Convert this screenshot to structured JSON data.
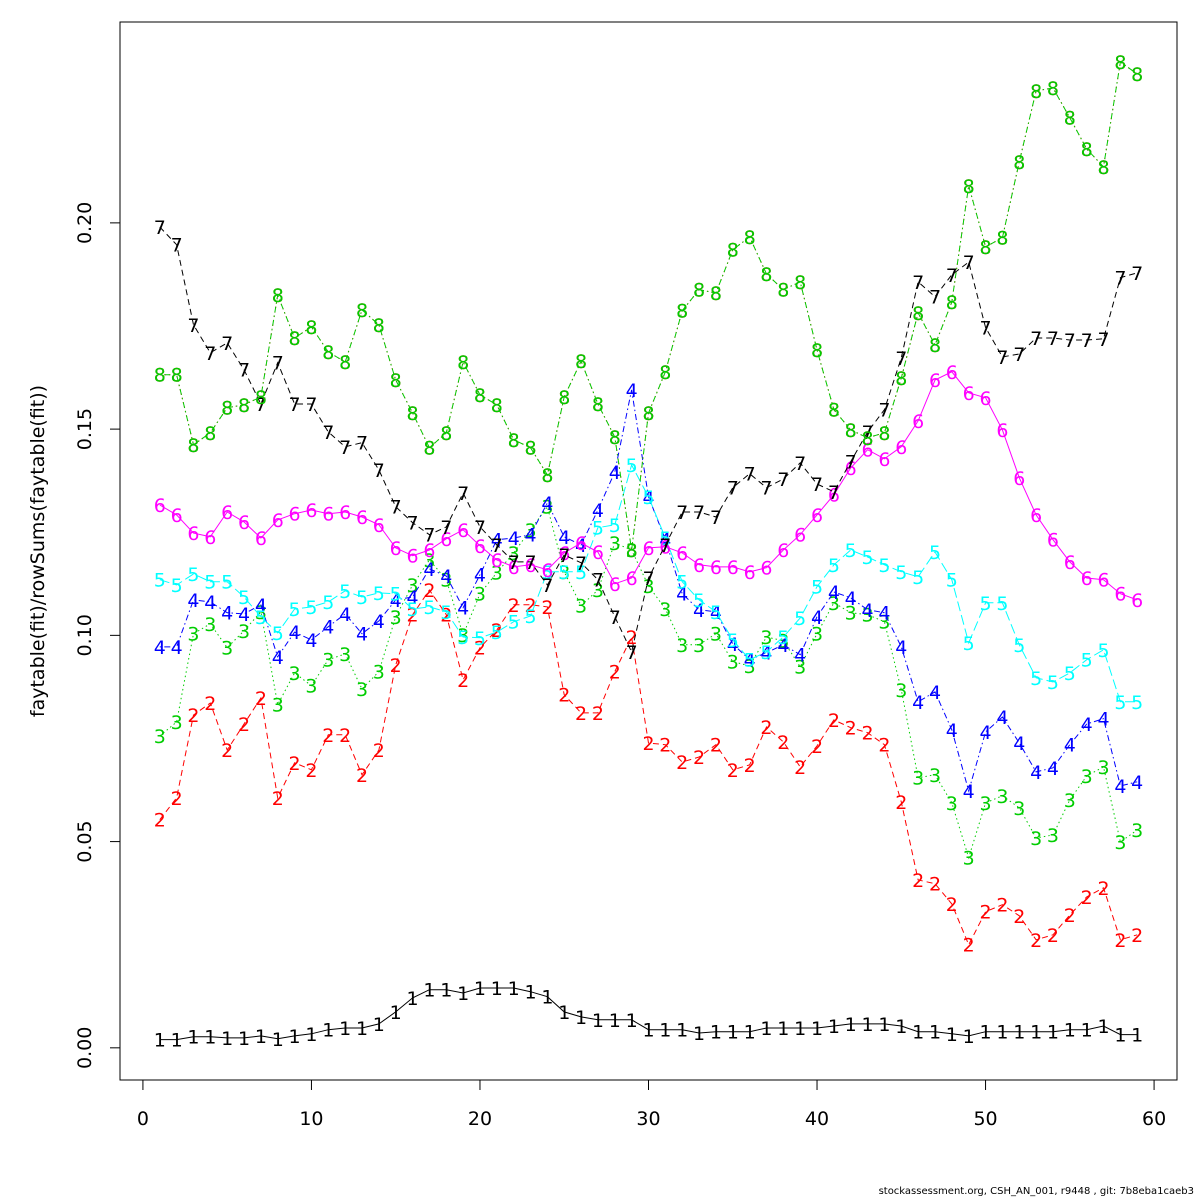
{
  "chart_data": {
    "type": "line",
    "y_label": "faytable(fit)/rowSums(faytable(fit))",
    "footer": "stockassessment.org, CSH_AN_001, r9448 , git: 7b8eba1caeb3",
    "x": [
      1,
      2,
      3,
      4,
      5,
      6,
      7,
      8,
      9,
      10,
      11,
      12,
      13,
      14,
      15,
      16,
      17,
      18,
      19,
      20,
      21,
      22,
      23,
      24,
      25,
      26,
      27,
      28,
      29,
      30,
      31,
      32,
      33,
      34,
      35,
      36,
      37,
      38,
      39,
      40,
      41,
      42,
      43,
      44,
      45,
      46,
      47,
      48,
      49,
      50,
      51,
      52,
      53,
      54,
      55,
      56,
      57,
      58,
      59
    ],
    "xlim": [
      -1.36,
      61.36
    ],
    "xticks": [
      0,
      10,
      20,
      30,
      40,
      50,
      60
    ],
    "ylim": [
      -0.0078,
      0.2487
    ],
    "yticks": [
      {
        "value": 0,
        "label": "0.00"
      },
      0.05,
      {
        "value": 0.1,
        "label": "0.10"
      },
      0.15,
      {
        "value": 0.2,
        "label": "0.20"
      }
    ],
    "series": [
      {
        "name": "1",
        "color": "#000000",
        "lty": "solid",
        "values": [
          0.002,
          0.002,
          0.0027,
          0.0027,
          0.0024,
          0.0024,
          0.0029,
          0.0022,
          0.0029,
          0.0034,
          0.0044,
          0.0048,
          0.0048,
          0.0058,
          0.0087,
          0.0121,
          0.0141,
          0.0141,
          0.0133,
          0.0145,
          0.0145,
          0.0145,
          0.0136,
          0.0124,
          0.0087,
          0.0075,
          0.0068,
          0.0068,
          0.0068,
          0.0044,
          0.0044,
          0.0044,
          0.0036,
          0.0039,
          0.0039,
          0.0039,
          0.0048,
          0.0048,
          0.0048,
          0.0048,
          0.0053,
          0.0058,
          0.0058,
          0.0058,
          0.0053,
          0.0039,
          0.0039,
          0.0034,
          0.0029,
          0.0039,
          0.0039,
          0.0039,
          0.0039,
          0.0039,
          0.0044,
          0.0044,
          0.0053,
          0.0032,
          0.0032
        ]
      },
      {
        "name": "2",
        "color": "#ff0000",
        "lty": "dashed",
        "values": [
          0.0553,
          0.0606,
          0.0807,
          0.0836,
          0.0722,
          0.0785,
          0.0848,
          0.0606,
          0.0691,
          0.0674,
          0.0759,
          0.0759,
          0.0662,
          0.0722,
          0.0928,
          0.105,
          0.111,
          0.105,
          0.0892,
          0.097,
          0.1013,
          0.1074,
          0.1074,
          0.1069,
          0.0856,
          0.0812,
          0.0812,
          0.0912,
          0.0996,
          0.0739,
          0.0735,
          0.0693,
          0.0705,
          0.0735,
          0.0674,
          0.0686,
          0.0778,
          0.0742,
          0.0681,
          0.0732,
          0.0795,
          0.0776,
          0.0764,
          0.0735,
          0.0596,
          0.0407,
          0.0398,
          0.0349,
          0.025,
          0.033,
          0.0347,
          0.032,
          0.0262,
          0.0274,
          0.0322,
          0.0366,
          0.0388,
          0.0262,
          0.0274
        ]
      },
      {
        "name": "3",
        "color": "#00cd00",
        "lty": "dotted",
        "values": [
          0.0756,
          0.079,
          0.1004,
          0.1028,
          0.097,
          0.1011,
          0.1057,
          0.0832,
          0.0909,
          0.0878,
          0.0941,
          0.0955,
          0.087,
          0.0912,
          0.1045,
          0.1122,
          0.1183,
          0.1135,
          0.1001,
          0.1101,
          0.1152,
          0.12,
          0.1256,
          0.1312,
          0.1154,
          0.1072,
          0.111,
          0.1224,
          0.1207,
          0.112,
          0.1064,
          0.0977,
          0.0977,
          0.1004,
          0.0936,
          0.0926,
          0.0996,
          0.0987,
          0.0924,
          0.1004,
          0.1079,
          0.1055,
          0.105,
          0.1033,
          0.0868,
          0.0655,
          0.0662,
          0.0594,
          0.0461,
          0.0594,
          0.0611,
          0.0582,
          0.0509,
          0.0516,
          0.0601,
          0.0659,
          0.0681,
          0.0499,
          0.0528
        ]
      },
      {
        "name": "4",
        "color": "#0000ff",
        "lty": "dotdash",
        "values": [
          0.0972,
          0.0972,
          0.1086,
          0.1081,
          0.1055,
          0.1052,
          0.1074,
          0.0948,
          0.1008,
          0.0989,
          0.1021,
          0.1052,
          0.1004,
          0.1035,
          0.1086,
          0.1093,
          0.1161,
          0.1144,
          0.1067,
          0.1147,
          0.1232,
          0.1236,
          0.1244,
          0.1321,
          0.1239,
          0.1219,
          0.1304,
          0.1396,
          0.1595,
          0.1336,
          0.1232,
          0.1101,
          0.1062,
          0.1057,
          0.0979,
          0.0941,
          0.0958,
          0.0977,
          0.0953,
          0.1045,
          0.1105,
          0.1091,
          0.1062,
          0.1055,
          0.0972,
          0.0839,
          0.0863,
          0.0771,
          0.0623,
          0.0766,
          0.0802,
          0.0739,
          0.0669,
          0.0679,
          0.0735,
          0.0785,
          0.0798,
          0.0635,
          0.0645
        ]
      },
      {
        "name": "5",
        "color": "#00ffff",
        "lty": "longdash",
        "values": [
          0.1135,
          0.1122,
          0.1149,
          0.113,
          0.113,
          0.1093,
          0.1045,
          0.1006,
          0.1064,
          0.1069,
          0.1081,
          0.1108,
          0.1093,
          0.1103,
          0.1101,
          0.1064,
          0.1069,
          0.1057,
          0.0996,
          0.0994,
          0.1008,
          0.1033,
          0.1047,
          0.1154,
          0.1154,
          0.1154,
          0.1261,
          0.1268,
          0.1413,
          0.1336,
          0.1236,
          0.113,
          0.1086,
          0.1057,
          0.0989,
          0.0941,
          0.096,
          0.0996,
          0.1042,
          0.1118,
          0.1171,
          0.1207,
          0.119,
          0.1171,
          0.1154,
          0.1142,
          0.1202,
          0.1135,
          0.0982,
          0.1079,
          0.1079,
          0.0977,
          0.0897,
          0.0887,
          0.0909,
          0.0941,
          0.0965,
          0.0839,
          0.0839
        ]
      },
      {
        "name": "6",
        "color": "#ff00ff",
        "lty": "solid",
        "values": [
          0.1316,
          0.1292,
          0.1248,
          0.1239,
          0.1299,
          0.1275,
          0.1236,
          0.128,
          0.1295,
          0.1304,
          0.1295,
          0.1299,
          0.1287,
          0.1268,
          0.1212,
          0.1193,
          0.1207,
          0.1234,
          0.1256,
          0.1217,
          0.1183,
          0.1166,
          0.1171,
          0.1159,
          0.12,
          0.1224,
          0.1202,
          0.1125,
          0.1139,
          0.1212,
          0.1215,
          0.12,
          0.1171,
          0.1166,
          0.1166,
          0.1154,
          0.1164,
          0.1207,
          0.1244,
          0.1292,
          0.1341,
          0.1406,
          0.145,
          0.1428,
          0.1457,
          0.152,
          0.1619,
          0.1639,
          0.1588,
          0.1576,
          0.1498,
          0.1382,
          0.1292,
          0.1232,
          0.1178,
          0.1139,
          0.1135,
          0.1101,
          0.1086
        ]
      },
      {
        "name": "7",
        "color": "#000000",
        "lty": "dashed",
        "values": [
          0.199,
          0.1947,
          0.1753,
          0.1685,
          0.1709,
          0.1644,
          0.1561,
          0.1661,
          0.1561,
          0.1561,
          0.1493,
          0.1457,
          0.1467,
          0.1401,
          0.1312,
          0.1273,
          0.1244,
          0.1263,
          0.1345,
          0.1263,
          0.1219,
          0.1178,
          0.1178,
          0.1122,
          0.1195,
          0.1176,
          0.1135,
          0.1045,
          0.096,
          0.1139,
          0.1219,
          0.1299,
          0.1299,
          0.1287,
          0.1358,
          0.1392,
          0.1358,
          0.1379,
          0.1418,
          0.1367,
          0.1348,
          0.1421,
          0.1493,
          0.1547,
          0.1673,
          0.1857,
          0.1821,
          0.1874,
          0.1905,
          0.1746,
          0.1675,
          0.1682,
          0.1721,
          0.1721,
          0.1716,
          0.1716,
          0.1719,
          0.1867,
          0.1879
        ]
      },
      {
        "name": "8",
        "color": "#ff0000",
        "lty": "dotted",
        "values": [
          0.1632,
          0.1632,
          0.1462,
          0.1491,
          0.1552,
          0.1559,
          0.1578,
          0.1825,
          0.1721,
          0.1748,
          0.1687,
          0.1663,
          0.1789,
          0.1753,
          0.1619,
          0.1539,
          0.1455,
          0.1491,
          0.1663,
          0.1583,
          0.1559,
          0.1474,
          0.1455,
          0.1389,
          0.1578,
          0.1665,
          0.1561,
          0.1481,
          0.1207,
          0.1539,
          0.1639,
          0.1787,
          0.1838,
          0.183,
          0.1935,
          0.1966,
          0.1876,
          0.1838,
          0.1857,
          0.1692,
          0.1547,
          0.1498,
          0.1479,
          0.1491,
          0.1624,
          0.1782,
          0.1704,
          0.1808,
          0.209,
          0.1942,
          0.1964,
          0.2148,
          0.232,
          0.2327,
          0.2255,
          0.2179,
          0.2136,
          0.239,
          0.2361
        ]
      },
      {
        "name": "8",
        "color": "#00cd00",
        "lty": "dotdash",
        "values": [
          0.1632,
          0.1632,
          0.1462,
          0.1491,
          0.1552,
          0.1559,
          0.1578,
          0.1825,
          0.1721,
          0.1748,
          0.1687,
          0.1663,
          0.1789,
          0.1753,
          0.1619,
          0.1539,
          0.1455,
          0.1491,
          0.1663,
          0.1583,
          0.1559,
          0.1474,
          0.1455,
          0.1389,
          0.1578,
          0.1665,
          0.1561,
          0.1481,
          0.1207,
          0.1539,
          0.1639,
          0.1787,
          0.1838,
          0.183,
          0.1935,
          0.1966,
          0.1876,
          0.1838,
          0.1857,
          0.1692,
          0.1547,
          0.1498,
          0.1479,
          0.1491,
          0.1624,
          0.1782,
          0.1704,
          0.1808,
          0.209,
          0.1942,
          0.1964,
          0.2148,
          0.232,
          0.2327,
          0.2255,
          0.2179,
          0.2136,
          0.239,
          0.2361
        ]
      }
    ]
  }
}
